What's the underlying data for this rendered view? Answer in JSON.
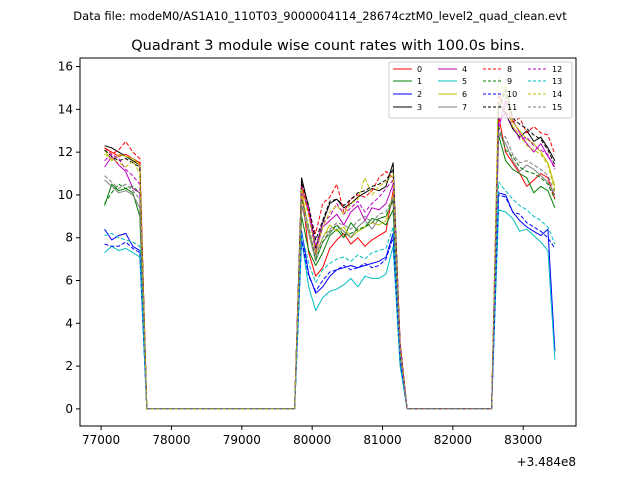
{
  "chart_data": {
    "type": "line",
    "supertitle": "Data file: modeM0/AS1A10_110T03_9000004114_28674cztM0_level2_quad_clean.evt",
    "title": "Quadrant 3 module wise count rates with 100.0s bins.",
    "xlabel": "",
    "ylabel": "",
    "offset_label": "+3.484e8",
    "xlim": [
      76700,
      83750
    ],
    "ylim": [
      -0.8,
      16.4
    ],
    "xticks": [
      77000,
      78000,
      79000,
      80000,
      81000,
      82000,
      83000
    ],
    "xtick_labels": [
      "77000",
      "78000",
      "79000",
      "80000",
      "81000",
      "82000",
      "83000"
    ],
    "yticks": [
      0,
      2,
      4,
      6,
      8,
      10,
      12,
      14,
      16
    ],
    "ytick_labels": [
      "0",
      "2",
      "4",
      "6",
      "8",
      "10",
      "12",
      "14",
      "16"
    ],
    "legend_position": "upper-right",
    "segments": [
      {
        "x_start": 77050,
        "n": 6
      },
      {
        "x_start": 79850,
        "n": 15
      },
      {
        "x_start": 82650,
        "n": 9
      }
    ],
    "gaps": [
      [
        77650,
        79750
      ],
      [
        81350,
        82550
      ]
    ],
    "series": [
      {
        "name": "0",
        "color": "#ff0000",
        "dash": false,
        "seg": [
          [
            12.2,
            12.0,
            11.8,
            11.9,
            11.7,
            11.5
          ],
          [
            10.3,
            7.3,
            6.2,
            6.6,
            7.5,
            7.9,
            8.2,
            7.7,
            8.0,
            7.6,
            7.9,
            8.1,
            8.3,
            10.2,
            2.5
          ],
          [
            13.7,
            12.0,
            11.5,
            11.0,
            10.4,
            10.7,
            11.0,
            10.8,
            9.8
          ]
        ]
      },
      {
        "name": "1",
        "color": "#008000",
        "dash": false,
        "seg": [
          [
            9.5,
            10.5,
            10.2,
            10.3,
            10.1,
            9.0
          ],
          [
            9.0,
            7.4,
            6.7,
            7.3,
            8.1,
            8.4,
            8.0,
            8.7,
            8.3,
            8.5,
            8.9,
            8.8,
            8.6,
            9.3,
            2.3
          ],
          [
            12.8,
            11.6,
            11.2,
            11.0,
            10.8,
            10.1,
            10.4,
            10.2,
            9.4
          ]
        ]
      },
      {
        "name": "2",
        "color": "#0000ff",
        "dash": false,
        "seg": [
          [
            8.4,
            7.9,
            8.1,
            8.2,
            7.6,
            7.4
          ],
          [
            8.3,
            6.3,
            5.4,
            5.7,
            6.2,
            6.5,
            6.6,
            6.7,
            6.6,
            6.7,
            6.8,
            6.9,
            7.1,
            8.2,
            2.2
          ],
          [
            10.1,
            10.0,
            9.2,
            8.8,
            8.5,
            8.3,
            8.1,
            8.4,
            2.7
          ]
        ]
      },
      {
        "name": "3",
        "color": "#000000",
        "dash": false,
        "seg": [
          [
            12.3,
            12.2,
            12.0,
            11.8,
            11.6,
            11.4
          ],
          [
            10.8,
            9.4,
            7.5,
            8.7,
            9.6,
            9.8,
            9.4,
            9.6,
            9.9,
            10.1,
            10.3,
            10.2,
            10.4,
            11.5,
            3.0
          ],
          [
            14.3,
            13.8,
            13.1,
            12.7,
            13.0,
            12.5,
            12.7,
            12.2,
            11.6
          ]
        ]
      },
      {
        "name": "4",
        "color": "#bf00bf",
        "dash": false,
        "seg": [
          [
            11.3,
            11.8,
            11.4,
            11.1,
            10.3,
            10.1
          ],
          [
            10.4,
            9.2,
            7.3,
            8.5,
            8.8,
            9.1,
            8.6,
            9.2,
            9.5,
            8.8,
            9.4,
            9.3,
            9.6,
            10.5,
            3.0
          ],
          [
            13.1,
            14.4,
            13.5,
            12.9,
            12.4,
            12.0,
            12.4,
            11.8,
            11.3
          ]
        ]
      },
      {
        "name": "5",
        "color": "#00bfbf",
        "dash": false,
        "seg": [
          [
            7.3,
            7.6,
            7.4,
            7.5,
            7.3,
            7.1
          ],
          [
            7.9,
            5.7,
            4.6,
            5.2,
            5.5,
            5.6,
            5.8,
            6.1,
            5.7,
            6.2,
            6.1,
            6.1,
            6.3,
            7.6,
            2.0
          ],
          [
            9.3,
            9.2,
            8.9,
            8.3,
            8.4,
            8.1,
            7.8,
            7.4,
            2.3
          ]
        ]
      },
      {
        "name": "6",
        "color": "#bfbf00",
        "dash": false,
        "seg": [
          [
            12.1,
            11.6,
            11.9,
            11.8,
            11.7,
            11.4
          ],
          [
            10.2,
            8.3,
            7.2,
            8.0,
            8.6,
            8.3,
            8.5,
            8.0,
            8.3,
            8.5,
            8.7,
            8.6,
            8.8,
            10.0,
            2.7
          ],
          [
            14.2,
            15.1,
            13.4,
            13.0,
            12.6,
            12.4,
            12.0,
            11.5,
            10.4
          ]
        ]
      },
      {
        "name": "7",
        "color": "#7f7f7f",
        "dash": false,
        "seg": [
          [
            10.7,
            10.4,
            10.1,
            10.2,
            10.0,
            9.4
          ],
          [
            9.5,
            8.2,
            6.9,
            7.8,
            8.2,
            8.6,
            8.3,
            8.0,
            8.5,
            8.8,
            8.4,
            8.9,
            9.0,
            9.7,
            2.6
          ],
          [
            12.9,
            12.4,
            11.6,
            11.1,
            11.4,
            11.2,
            10.9,
            10.6,
            10.0
          ]
        ]
      },
      {
        "name": "8",
        "color": "#ff0000",
        "dash": true,
        "seg": [
          [
            12.2,
            11.9,
            12.1,
            12.5,
            12.0,
            11.7
          ],
          [
            10.6,
            9.1,
            8.2,
            9.6,
            9.9,
            10.5,
            9.2,
            9.8,
            10.0,
            9.9,
            10.2,
            10.8,
            11.1,
            10.8,
            3.1
          ],
          [
            14.7,
            13.9,
            13.4,
            13.6,
            12.9,
            13.2,
            12.9,
            12.8,
            11.9
          ]
        ]
      },
      {
        "name": "9",
        "color": "#008000",
        "dash": true,
        "seg": [
          [
            9.6,
            10.1,
            10.5,
            10.3,
            10.4,
            10.1
          ],
          [
            9.8,
            8.5,
            7.0,
            7.8,
            8.3,
            8.6,
            8.1,
            8.2,
            8.4,
            8.5,
            8.7,
            8.9,
            9.0,
            9.8,
            2.7
          ],
          [
            13.2,
            12.1,
            11.8,
            11.3,
            11.1,
            11.0,
            10.8,
            10.5,
            9.8
          ]
        ]
      },
      {
        "name": "10",
        "color": "#0000ff",
        "dash": true,
        "seg": [
          [
            7.7,
            7.6,
            7.6,
            7.8,
            7.5,
            7.3
          ],
          [
            7.9,
            6.2,
            5.5,
            6.0,
            6.4,
            6.5,
            6.7,
            6.5,
            6.6,
            6.8,
            6.6,
            6.7,
            7.0,
            8.0,
            2.3
          ],
          [
            10.0,
            9.9,
            9.2,
            9.1,
            8.7,
            8.5,
            8.3,
            8.0,
            7.5
          ]
        ]
      },
      {
        "name": "11",
        "color": "#000000",
        "dash": true,
        "seg": [
          [
            12.1,
            11.8,
            11.6,
            11.7,
            11.5,
            11.3
          ],
          [
            10.6,
            9.5,
            7.9,
            8.8,
            9.7,
            9.8,
            9.5,
            9.8,
            10.1,
            10.2,
            10.4,
            10.5,
            10.7,
            11.2,
            3.1
          ],
          [
            14.0,
            14.9,
            13.6,
            13.3,
            13.1,
            12.8,
            12.6,
            12.1,
            11.4
          ]
        ]
      },
      {
        "name": "12",
        "color": "#bf00bf",
        "dash": true,
        "seg": [
          [
            11.6,
            11.9,
            11.7,
            11.2,
            10.9,
            10.5
          ],
          [
            10.1,
            9.4,
            7.6,
            8.7,
            9.0,
            9.6,
            9.1,
            9.4,
            9.7,
            9.2,
            9.6,
            9.9,
            10.3,
            10.7,
            3.0
          ],
          [
            13.5,
            13.8,
            13.2,
            12.6,
            12.7,
            12.3,
            12.1,
            11.9,
            11.2
          ]
        ]
      },
      {
        "name": "13",
        "color": "#00bfbf",
        "dash": true,
        "seg": [
          [
            8.1,
            8.2,
            8.0,
            7.9,
            7.8,
            7.6
          ],
          [
            8.2,
            6.8,
            5.9,
            6.5,
            6.8,
            7.0,
            7.1,
            6.9,
            7.2,
            7.0,
            7.3,
            7.4,
            7.5,
            8.5,
            2.4
          ],
          [
            10.6,
            10.2,
            9.8,
            9.5,
            9.3,
            9.0,
            8.8,
            8.5,
            7.7
          ]
        ]
      },
      {
        "name": "14",
        "color": "#bfbf00",
        "dash": true,
        "seg": [
          [
            11.9,
            11.7,
            11.5,
            11.3,
            11.6,
            11.0
          ],
          [
            10.3,
            9.0,
            7.4,
            8.5,
            9.2,
            9.5,
            9.1,
            9.6,
            9.8,
            10.8,
            10.0,
            10.4,
            10.6,
            11.0,
            2.9
          ],
          [
            15.5,
            14.6,
            13.2,
            12.8,
            12.3,
            12.1,
            11.9,
            11.4,
            10.2
          ]
        ]
      },
      {
        "name": "15",
        "color": "#7f7f7f",
        "dash": true,
        "seg": [
          [
            10.9,
            10.6,
            10.3,
            10.5,
            10.2,
            9.8
          ],
          [
            9.7,
            8.5,
            7.1,
            8.0,
            8.4,
            8.7,
            8.6,
            8.4,
            8.8,
            9.0,
            8.7,
            9.1,
            9.2,
            9.9,
            2.6
          ],
          [
            13.0,
            12.7,
            11.9,
            11.5,
            11.6,
            11.4,
            11.2,
            10.9,
            10.1
          ]
        ]
      }
    ]
  }
}
